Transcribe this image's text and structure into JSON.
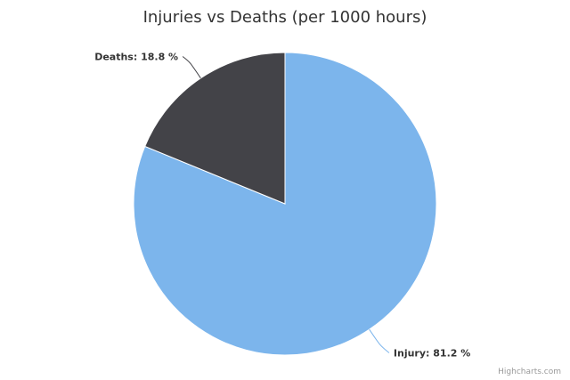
{
  "chart_data": {
    "type": "pie",
    "title": "Injuries vs Deaths (per 1000 hours)",
    "slices": [
      {
        "name": "Injury",
        "value": 81.2,
        "label": "Injury: 81.2 %",
        "color": "#7cb5ec"
      },
      {
        "name": "Deaths",
        "value": 18.8,
        "label": "Deaths: 18.8 %",
        "color": "#434348"
      }
    ],
    "start_angle_deg": 0,
    "legend": "none"
  },
  "credits": "Highcharts.com"
}
